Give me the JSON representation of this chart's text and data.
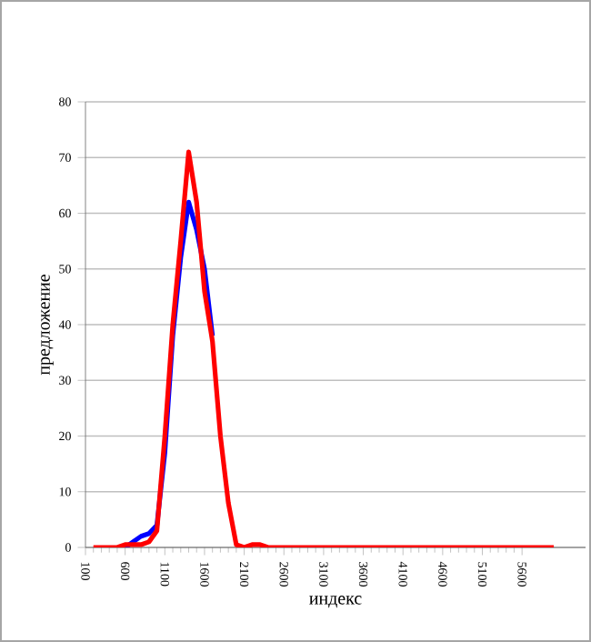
{
  "chart_data": {
    "type": "line",
    "xlabel": "индекс",
    "ylabel": "предложение",
    "xlim": [
      100,
      6400
    ],
    "xticks": [
      100,
      600,
      1100,
      1600,
      2100,
      2600,
      3100,
      3600,
      4100,
      4600,
      5100,
      5600
    ],
    "ylim": [
      0,
      80
    ],
    "yticks": [
      0,
      10,
      20,
      30,
      40,
      50,
      60,
      70,
      80
    ],
    "grid": "y",
    "marker": "none",
    "line_style": "solid",
    "series": [
      {
        "color": "#0000ff",
        "x": [
          600,
          700,
          800,
          900,
          1000,
          1100,
          1200,
          1300,
          1400,
          1500,
          1600,
          1700
        ],
        "values": [
          0,
          1,
          2,
          2.5,
          4,
          17,
          38,
          52,
          62,
          57,
          50,
          38
        ]
      },
      {
        "color": "#ff0000",
        "x": [
          200,
          300,
          400,
          500,
          600,
          700,
          800,
          900,
          1000,
          1100,
          1200,
          1300,
          1400,
          1500,
          1600,
          1700,
          1800,
          1900,
          2000,
          2100,
          2200,
          2300,
          2400,
          2500,
          6000
        ],
        "values": [
          0,
          0,
          0,
          0,
          0.5,
          0.5,
          0.5,
          1,
          3,
          20,
          40,
          55,
          71,
          62,
          46,
          37,
          20,
          8,
          0.5,
          0,
          0.5,
          0.5,
          0,
          0,
          0
        ]
      }
    ]
  }
}
